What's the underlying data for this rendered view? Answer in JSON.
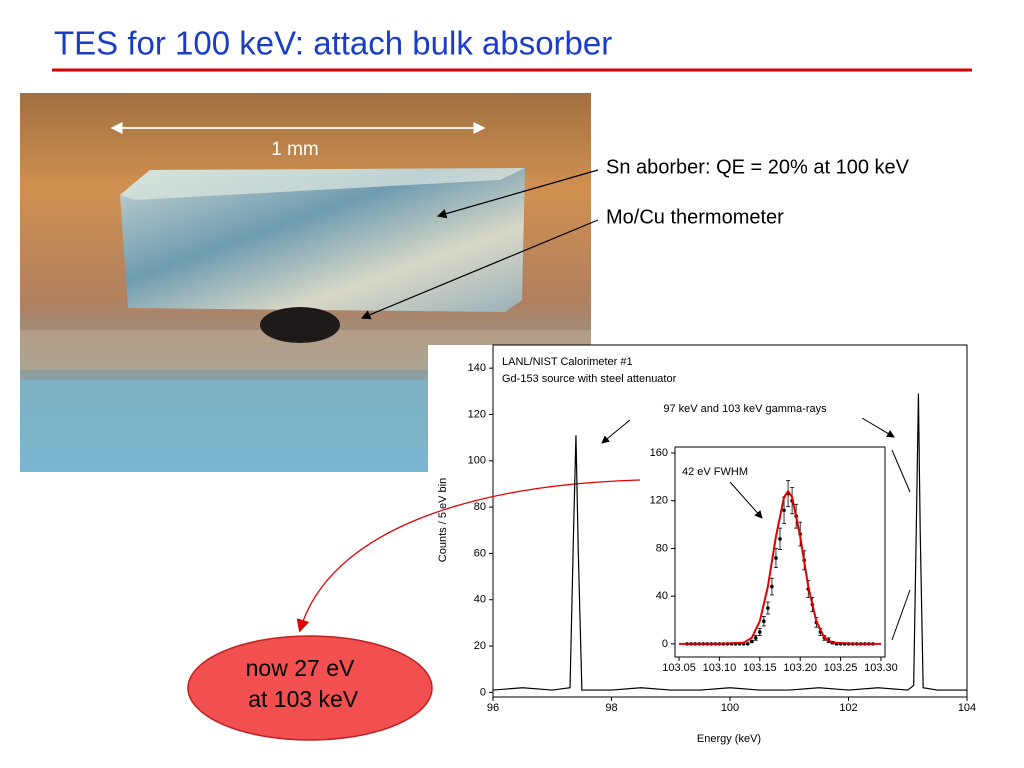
{
  "title": "TES for 100 keV: attach bulk absorber",
  "photo": {
    "scale_label": "1 mm",
    "annotations": [
      "Sn aborber: QE = 20% at 100 keV",
      "Mo/Cu thermometer"
    ]
  },
  "callout": [
    "now 27 eV",
    " at 103 keV"
  ],
  "chart_data": [
    {
      "type": "line",
      "title": "LANL/NIST Calorimeter #1",
      "subtitle": "Gd-153 source with steel attenuator",
      "annotation": "97 keV and 103 keV gamma-rays",
      "xlabel": "Energy (keV)",
      "ylabel": "Counts / 5 eV bin",
      "color": "#000000",
      "x": [
        96,
        96.5,
        97,
        97.3,
        97.36,
        97.4,
        97.44,
        97.5,
        98,
        98.5,
        99,
        99.5,
        100,
        100.5,
        101,
        101.5,
        102,
        102.5,
        103,
        103.1,
        103.15,
        103.18,
        103.21,
        103.26,
        103.5,
        104
      ],
      "values": [
        1,
        2,
        1,
        2,
        70,
        111,
        60,
        1,
        1,
        2,
        1,
        1,
        2,
        1,
        1,
        2,
        1,
        2,
        1,
        3,
        80,
        129,
        70,
        2,
        1,
        1
      ],
      "xlim": [
        96,
        104
      ],
      "ylim": [
        -2,
        150
      ],
      "xticks": [
        96,
        98,
        100,
        102,
        104
      ],
      "yticks": [
        0,
        20,
        40,
        60,
        80,
        100,
        120,
        140
      ]
    },
    {
      "type": "scatter",
      "annotation": "42 eV FWHM",
      "color": "#000000",
      "x": [
        103.06,
        103.065,
        103.07,
        103.075,
        103.08,
        103.085,
        103.09,
        103.095,
        103.1,
        103.105,
        103.11,
        103.115,
        103.12,
        103.125,
        103.13,
        103.135,
        103.14,
        103.145,
        103.15,
        103.155,
        103.16,
        103.165,
        103.17,
        103.175,
        103.18,
        103.185,
        103.19,
        103.195,
        103.2,
        103.205,
        103.21,
        103.215,
        103.22,
        103.225,
        103.23,
        103.235,
        103.24,
        103.245,
        103.25,
        103.255,
        103.26,
        103.265,
        103.27,
        103.275,
        103.28,
        103.285,
        103.29
      ],
      "values": [
        0,
        0,
        0,
        0,
        0,
        0,
        0,
        0,
        0,
        0,
        0,
        0,
        0,
        0,
        0,
        0,
        2,
        5,
        10,
        19,
        30,
        48,
        72,
        88,
        112,
        126,
        120,
        107,
        92,
        70,
        46,
        33,
        18,
        10,
        5,
        3,
        1,
        0,
        0,
        0,
        0,
        0,
        0,
        0,
        0,
        0,
        0
      ],
      "errors": [
        0,
        0,
        0,
        0,
        0,
        0,
        0,
        0,
        0,
        0,
        0,
        0,
        0,
        0,
        0,
        0,
        1,
        2,
        3,
        4,
        5,
        7,
        8,
        9,
        11,
        11,
        11,
        10,
        10,
        8,
        7,
        6,
        4,
        3,
        2,
        2,
        1,
        0,
        0,
        0,
        0,
        0,
        0,
        0,
        0,
        0,
        0
      ],
      "fit": {
        "color": "#e00000",
        "x": [
          103.05,
          103.1,
          103.13,
          103.14,
          103.15,
          103.16,
          103.17,
          103.18,
          103.185,
          103.19,
          103.2,
          103.21,
          103.22,
          103.23,
          103.24,
          103.27,
          103.3
        ],
        "values": [
          0,
          0,
          1,
          5,
          19,
          48,
          90,
          123,
          128,
          123,
          90,
          48,
          19,
          5,
          1,
          0,
          0
        ]
      },
      "xlim": [
        103.045,
        103.305
      ],
      "ylim": [
        -11,
        165
      ],
      "xticks": [
        103.05,
        {
          "value": 103.1,
          "label": "103.10"
        },
        103.15,
        {
          "value": 103.2,
          "label": "103.20"
        },
        103.25,
        {
          "value": 103.3,
          "label": "103.30"
        }
      ],
      "yticks": [
        0,
        40,
        80,
        120,
        160
      ]
    }
  ]
}
